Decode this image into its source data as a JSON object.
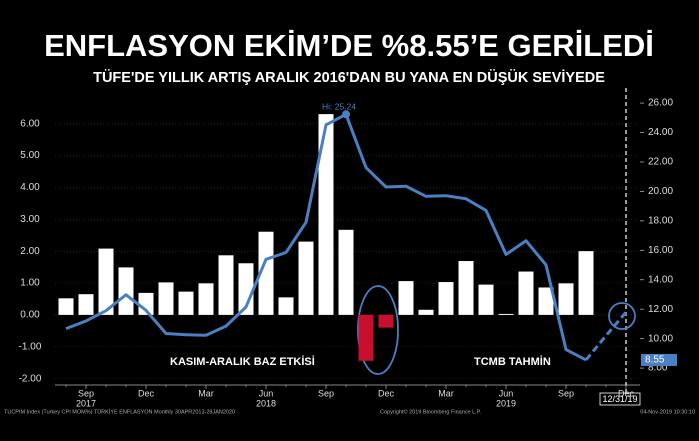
{
  "chart_data": {
    "type": "combo",
    "title": "ENFLASYON EKİM’DE %8.55’E GERİLEDİ",
    "subtitle": "TÜFE'DE YILLIK ARTIŞ ARALIK 2016'DAN BU YANA EN DÜŞÜK SEVİYEDE",
    "categories": [
      null,
      "Sep",
      null,
      null,
      "Dec",
      null,
      null,
      "Mar",
      null,
      null,
      "Jun",
      null,
      null,
      "Sep",
      null,
      null,
      "Dec",
      null,
      null,
      "Mar",
      null,
      null,
      "Jun",
      null,
      null,
      "Sep",
      null,
      null,
      "Dec"
    ],
    "years": [
      null,
      "2017",
      null,
      null,
      null,
      null,
      null,
      null,
      null,
      null,
      "2018",
      null,
      null,
      null,
      null,
      null,
      null,
      null,
      null,
      null,
      null,
      null,
      "2019",
      null,
      null,
      null,
      null,
      null,
      null
    ],
    "series": [
      {
        "name": "TUCPIM Index (Turkey CPI MOM%)",
        "type": "bar",
        "axis": "y",
        "color": "#ffffff",
        "negative_color": "#c8102e",
        "values": [
          0.52,
          0.65,
          2.08,
          1.49,
          0.69,
          1.02,
          0.73,
          0.99,
          1.87,
          1.62,
          2.61,
          0.55,
          2.3,
          6.3,
          2.67,
          -1.44,
          -0.4,
          1.06,
          0.16,
          1.03,
          1.69,
          0.95,
          0.03,
          1.36,
          0.86,
          0.99,
          2.0,
          null,
          null
        ]
      },
      {
        "name": "TÜRKİYE ENFLASYON",
        "type": "line",
        "axis": "y2",
        "color": "#4a7fc1",
        "values": [
          10.68,
          11.2,
          11.9,
          12.98,
          11.92,
          10.35,
          10.26,
          10.23,
          10.85,
          12.15,
          15.39,
          15.85,
          17.9,
          24.52,
          25.24,
          21.62,
          20.3,
          20.35,
          19.67,
          19.71,
          19.5,
          18.71,
          15.72,
          16.65,
          15.01,
          9.26,
          8.55,
          null,
          null
        ]
      },
      {
        "name": "TCMB TAHMİN",
        "type": "line",
        "dashed": true,
        "axis": "y2",
        "color": "#4a7fc1",
        "values": [
          null,
          null,
          null,
          null,
          null,
          null,
          null,
          null,
          null,
          null,
          null,
          null,
          null,
          null,
          null,
          null,
          null,
          null,
          null,
          null,
          null,
          null,
          null,
          null,
          null,
          null,
          8.55,
          10.2,
          11.8
        ]
      }
    ],
    "ylim": [
      -2.2,
      6.9
    ],
    "yticks": [
      {
        "value": -2,
        "label": "-2.00"
      },
      {
        "value": -1,
        "label": "-1.00"
      },
      {
        "value": 0,
        "label": "0.00"
      },
      {
        "value": 1,
        "label": "1.00"
      },
      {
        "value": 2,
        "label": "2.00"
      },
      {
        "value": 3,
        "label": "3.00"
      },
      {
        "value": 4,
        "label": "4.00"
      },
      {
        "value": 5,
        "label": "5.00"
      },
      {
        "value": 6,
        "label": "6.00"
      }
    ],
    "y2lim": [
      6.85,
      26.55
    ],
    "y2ticks": [
      {
        "value": 8,
        "label": "8.00"
      },
      {
        "value": 10,
        "label": "10.00"
      },
      {
        "value": 12,
        "label": "12.00"
      },
      {
        "value": 14,
        "label": "14.00"
      },
      {
        "value": 16,
        "label": "16.00"
      },
      {
        "value": 18,
        "label": "18.00"
      },
      {
        "value": 20,
        "label": "20.00"
      },
      {
        "value": 22,
        "label": "22.00"
      },
      {
        "value": 24,
        "label": "24.00"
      },
      {
        "value": 26,
        "label": "26.00"
      }
    ],
    "grid": true,
    "annotations": {
      "high": "Hi: 25.24",
      "base_effect": "KASIM-ARALIK BAZ ETKİSİ",
      "forecast": "TCMB TAHMİN",
      "date_tag": "12/31/19"
    },
    "footer": {
      "left": "TUCPIM Index (Turkey CPI MOM%) TÜRKİYE ENFLASYON  Monthly 30APR2013-28JAN2020",
      "center": "Copyright© 2019 Bloomberg Finance L.P.",
      "right": "04-Nov-2019 10:30:10"
    }
  }
}
